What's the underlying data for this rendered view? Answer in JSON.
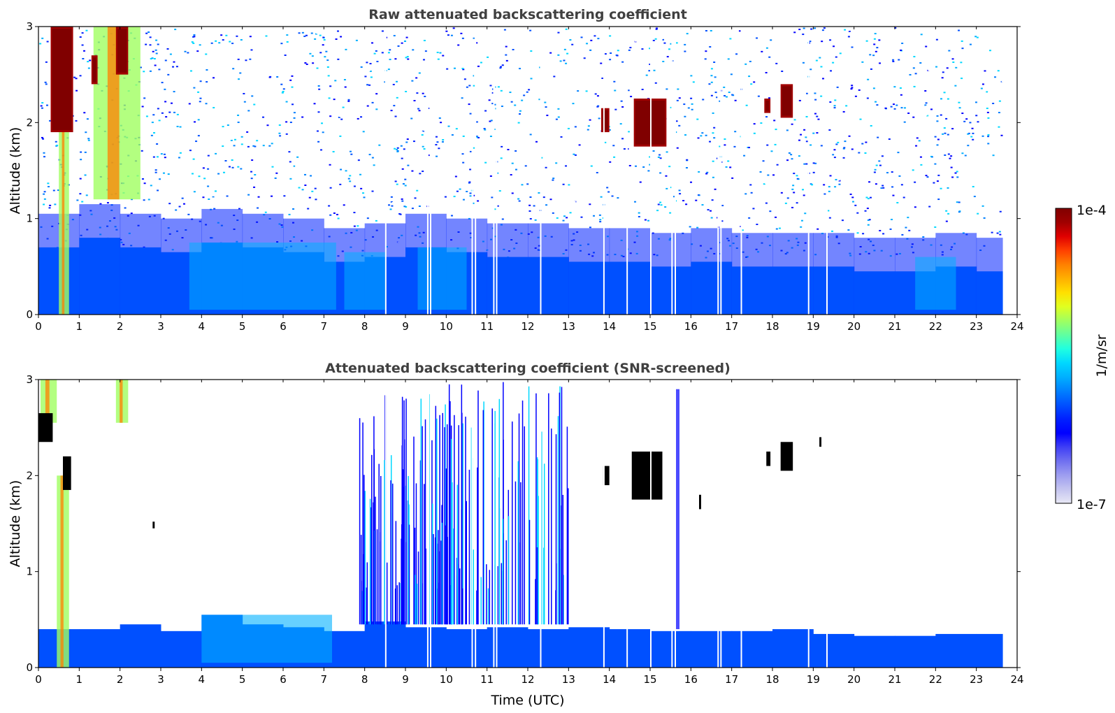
{
  "chart_data": [
    {
      "type": "heatmap",
      "title": "Raw attenuated backscattering coefficient",
      "xlabel": "",
      "ylabel": "Altitude (km)",
      "xlim": [
        0,
        24
      ],
      "ylim": [
        0,
        3
      ],
      "xticks": [
        "0",
        "1",
        "2",
        "3",
        "4",
        "5",
        "6",
        "7",
        "8",
        "9",
        "10",
        "11",
        "12",
        "13",
        "14",
        "15",
        "16",
        "17",
        "18",
        "19",
        "20",
        "21",
        "22",
        "23",
        "24"
      ],
      "yticks": [
        "0",
        "1",
        "2",
        "3"
      ],
      "data_end_time": 23.65,
      "data_gaps_time": [
        8.5,
        9.53,
        9.6,
        10.62,
        10.7,
        11.15,
        11.22,
        12.3,
        13.85,
        14.42,
        15.0,
        15.52,
        15.6,
        16.65,
        16.72,
        17.22,
        18.87,
        19.32
      ],
      "features": {
        "boundary_layer_top_km": [
          0.7,
          0.8,
          0.7,
          0.65,
          0.75,
          0.7,
          0.65,
          0.55,
          0.6,
          0.7,
          0.65,
          0.6,
          0.6,
          0.55,
          0.55,
          0.5,
          0.55,
          0.5,
          0.5,
          0.5,
          0.45,
          0.45,
          0.5,
          0.45
        ],
        "clouds": [
          {
            "t0": 0.3,
            "t1": 0.85,
            "z0": 1.9,
            "z1": 3.0
          },
          {
            "t0": 1.3,
            "t1": 1.45,
            "z0": 2.4,
            "z1": 2.7
          },
          {
            "t0": 1.9,
            "t1": 2.2,
            "z0": 2.5,
            "z1": 3.0
          },
          {
            "t0": 13.8,
            "t1": 14.0,
            "z0": 1.9,
            "z1": 2.15
          },
          {
            "t0": 14.6,
            "t1": 15.4,
            "z0": 1.75,
            "z1": 2.25
          },
          {
            "t0": 17.8,
            "t1": 17.95,
            "z0": 2.1,
            "z1": 2.25
          },
          {
            "t0": 18.2,
            "t1": 18.5,
            "z0": 2.05,
            "z1": 2.4
          }
        ],
        "precipitation_streaks": [
          {
            "t0": 0.5,
            "t1": 0.75,
            "z0": 0.0,
            "z1": 3.0
          },
          {
            "t0": 1.35,
            "t1": 2.5,
            "z0": 1.2,
            "z1": 3.0
          }
        ]
      }
    },
    {
      "type": "heatmap",
      "title": "Attenuated backscattering coefficient (SNR-screened)",
      "xlabel": "Time (UTC)",
      "ylabel": "Altitude (km)",
      "xlim": [
        0,
        24
      ],
      "ylim": [
        0,
        3
      ],
      "xticks": [
        "0",
        "1",
        "2",
        "3",
        "4",
        "5",
        "6",
        "7",
        "8",
        "9",
        "10",
        "11",
        "12",
        "13",
        "14",
        "15",
        "16",
        "17",
        "18",
        "19",
        "20",
        "21",
        "22",
        "23",
        "24"
      ],
      "yticks": [
        "0",
        "1",
        "2",
        "3"
      ],
      "data_end_time": 23.65,
      "data_gaps_time": [
        8.5,
        9.53,
        9.6,
        10.62,
        10.7,
        11.15,
        11.22,
        12.3,
        13.85,
        14.42,
        15.0,
        15.52,
        15.6,
        16.65,
        16.72,
        17.22,
        18.87,
        19.32
      ],
      "features": {
        "layer_top_km": [
          0.4,
          0.4,
          0.45,
          0.38,
          0.55,
          0.45,
          0.42,
          0.38,
          0.48,
          0.42,
          0.4,
          0.42,
          0.4,
          0.42,
          0.4,
          0.38,
          0.38,
          0.38,
          0.4,
          0.35,
          0.33,
          0.33,
          0.35,
          0.35
        ],
        "noise_region": {
          "t0": 7.85,
          "t1": 13.0,
          "z0": 0.45,
          "z1": 3.0
        },
        "noise_column": {
          "t0": 15.6,
          "t1": 15.72,
          "z0": 0.4,
          "z1": 2.9
        },
        "clouds_black": [
          {
            "t0": 0.0,
            "t1": 0.35,
            "z0": 2.35,
            "z1": 2.65
          },
          {
            "t0": 0.6,
            "t1": 0.8,
            "z0": 1.85,
            "z1": 2.2
          },
          {
            "t0": 13.85,
            "t1": 14.0,
            "z0": 1.9,
            "z1": 2.1
          },
          {
            "t0": 14.55,
            "t1": 15.3,
            "z0": 1.75,
            "z1": 2.25
          },
          {
            "t0": 17.85,
            "t1": 17.95,
            "z0": 2.1,
            "z1": 2.25
          },
          {
            "t0": 18.2,
            "t1": 18.5,
            "z0": 2.05,
            "z1": 2.35
          },
          {
            "t0": 19.15,
            "t1": 19.2,
            "z0": 2.3,
            "z1": 2.4
          },
          {
            "t0": 16.2,
            "t1": 16.25,
            "z0": 1.65,
            "z1": 1.8
          },
          {
            "t0": 2.8,
            "t1": 2.85,
            "z0": 1.45,
            "z1": 1.52
          }
        ],
        "precipitation_streaks": [
          {
            "t0": 0.45,
            "t1": 0.75,
            "z0": 0.0,
            "z1": 2.0
          },
          {
            "t0": 0.05,
            "t1": 0.45,
            "z0": 2.55,
            "z1": 3.0
          },
          {
            "t0": 1.9,
            "t1": 2.2,
            "z0": 2.55,
            "z1": 3.0
          }
        ]
      }
    }
  ],
  "colorbar": {
    "label": "1/m/sr",
    "max_label": "1e-4",
    "min_label": "1e-7",
    "scale": "log",
    "colormap": "jet",
    "colors": [
      "#e8e8f5",
      "#c4c4f0",
      "#9e9ef0",
      "#7070f0",
      "#3f3ff5",
      "#0000ff",
      "#0020ff",
      "#0050ff",
      "#0080ff",
      "#00b0ff",
      "#00d8ff",
      "#20ffe0",
      "#60ffa0",
      "#a0ff60",
      "#e0ff20",
      "#ffe000",
      "#ffb000",
      "#ff8000",
      "#ff4000",
      "#e00000",
      "#a00000",
      "#800000"
    ]
  }
}
